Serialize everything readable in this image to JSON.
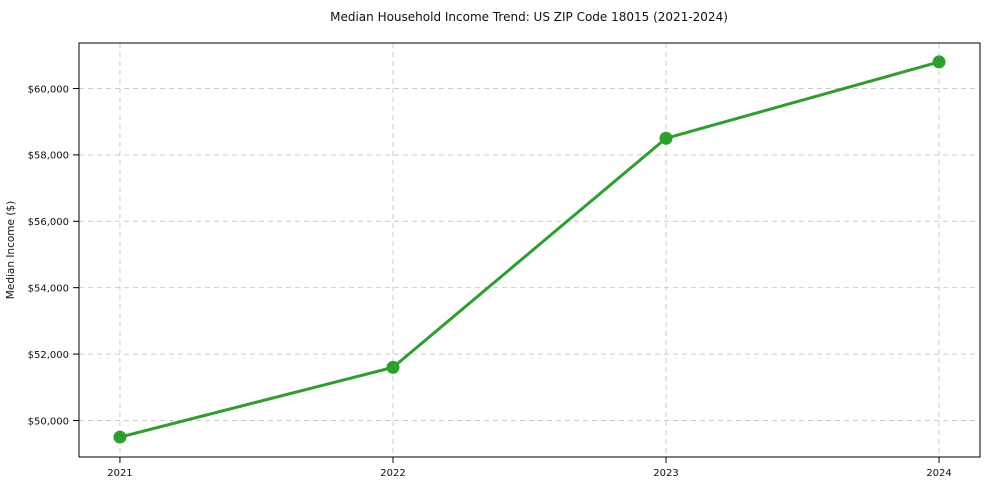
{
  "figure": {
    "background": "#ffffff",
    "text_color": "#111111",
    "spine_color": "#000000"
  },
  "chart_data": {
    "type": "line",
    "title": "Median Household Income Trend: US ZIP Code 18015 (2021-2024)",
    "xlabel": "",
    "ylabel": "Median Income ($)",
    "x": [
      2021,
      2022,
      2023,
      2024
    ],
    "xtick_labels": [
      "2021",
      "2022",
      "2023",
      "2024"
    ],
    "series": [
      {
        "name": "Median Household Income",
        "color": "#2ca02c",
        "values": [
          49500,
          51600,
          58500,
          60800
        ],
        "marker": "circle",
        "marker_size": 6.5,
        "line_width": 3
      }
    ],
    "yticks": [
      50000,
      52000,
      54000,
      56000,
      58000,
      60000
    ],
    "ytick_labels": [
      "$50,000",
      "$52,000",
      "$54,000",
      "$56,000",
      "$58,000",
      "$60,000"
    ],
    "xlim": [
      2020.85,
      2024.15
    ],
    "ylim": [
      48900,
      61370
    ],
    "grid": true,
    "grid_style": "dashed",
    "grid_color": "#cccccc",
    "legend_position": "none"
  }
}
